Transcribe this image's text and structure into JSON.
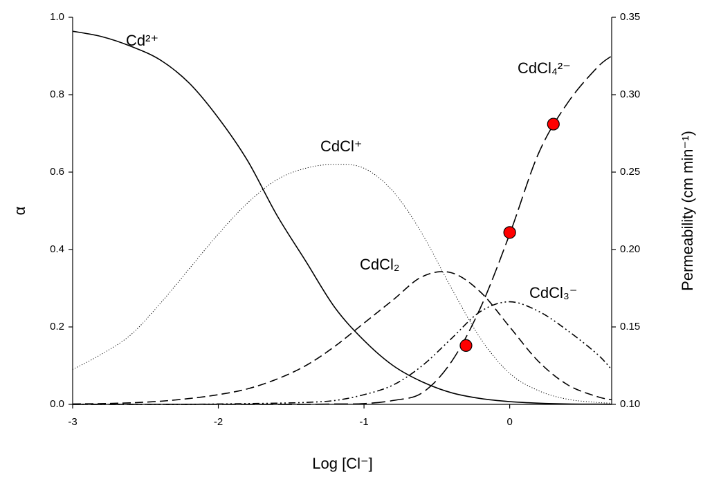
{
  "chart_data": {
    "type": "line",
    "xlabel": "Log [Cl⁻]",
    "ylabel": "α",
    "y2label": "Permeability (cm min⁻¹)",
    "x": [
      -3,
      -2.8,
      -2.6,
      -2.4,
      -2.2,
      -2.0,
      -1.8,
      -1.6,
      -1.4,
      -1.2,
      -1.0,
      -0.8,
      -0.6,
      -0.4,
      -0.2,
      0,
      0.2,
      0.4,
      0.6,
      0.7
    ],
    "series": [
      {
        "name": "Cd²⁺",
        "color": "#000000",
        "dash": "solid",
        "values": [
          0.964,
          0.95,
          0.925,
          0.89,
          0.83,
          0.74,
          0.63,
          0.49,
          0.37,
          0.25,
          0.165,
          0.1,
          0.058,
          0.03,
          0.015,
          0.007,
          0.003,
          0.001,
          0.0005,
          0.0003
        ]
      },
      {
        "name": "CdCl⁺",
        "color": "#000000",
        "dash": "dotted",
        "values": [
          0.09,
          0.13,
          0.18,
          0.26,
          0.35,
          0.44,
          0.52,
          0.58,
          0.61,
          0.62,
          0.61,
          0.55,
          0.44,
          0.3,
          0.17,
          0.08,
          0.035,
          0.013,
          0.005,
          0.003
        ]
      },
      {
        "name": "CdCl₂",
        "color": "#000000",
        "dash": "dashed",
        "values": [
          0.001,
          0.002,
          0.004,
          0.008,
          0.015,
          0.025,
          0.04,
          0.065,
          0.1,
          0.15,
          0.21,
          0.27,
          0.33,
          0.34,
          0.29,
          0.2,
          0.11,
          0.05,
          0.02,
          0.012
        ]
      },
      {
        "name": "CdCl₃⁻",
        "color": "#000000",
        "dash": "dash-dot-dot",
        "values": [
          0,
          0,
          0,
          0,
          0,
          0.001,
          0.002,
          0.003,
          0.005,
          0.01,
          0.025,
          0.05,
          0.1,
          0.17,
          0.24,
          0.265,
          0.24,
          0.19,
          0.13,
          0.09
        ]
      },
      {
        "name": "CdCl₄²⁻",
        "color": "#000000",
        "dash": "long-dash",
        "values": [
          0,
          0,
          0,
          0,
          0,
          0,
          0,
          0,
          0,
          0.001,
          0.002,
          0.01,
          0.03,
          0.11,
          0.25,
          0.44,
          0.65,
          0.78,
          0.87,
          0.9
        ]
      }
    ],
    "points": {
      "type": "scatter",
      "axis": "y2",
      "color": "#ff0000",
      "x": [
        -0.3,
        0,
        0.3
      ],
      "values": [
        0.138,
        0.211,
        0.281
      ]
    },
    "xlim": [
      -3,
      0.7
    ],
    "xticks": [
      -3,
      -2,
      -1,
      0
    ],
    "ylim": [
      0,
      1
    ],
    "yticks": [
      {
        "value": 0,
        "label": "0.0"
      },
      {
        "value": 0.2,
        "label": "0.2"
      },
      {
        "value": 0.4,
        "label": "0.4"
      },
      {
        "value": 0.6,
        "label": "0.6"
      },
      {
        "value": 0.8,
        "label": "0.8"
      },
      {
        "value": 1,
        "label": "1.0"
      }
    ],
    "y2lim": [
      0.1,
      0.35
    ],
    "y2ticks": [
      {
        "value": 0.1,
        "label": "0.10"
      },
      {
        "value": 0.15,
        "label": "0.15"
      },
      {
        "value": 0.2,
        "label": "0.20"
      },
      {
        "value": 0.25,
        "label": "0.25"
      },
      {
        "value": 0.3,
        "label": "0.30"
      },
      {
        "value": 0.35,
        "label": "0.35"
      }
    ],
    "grid": false
  }
}
